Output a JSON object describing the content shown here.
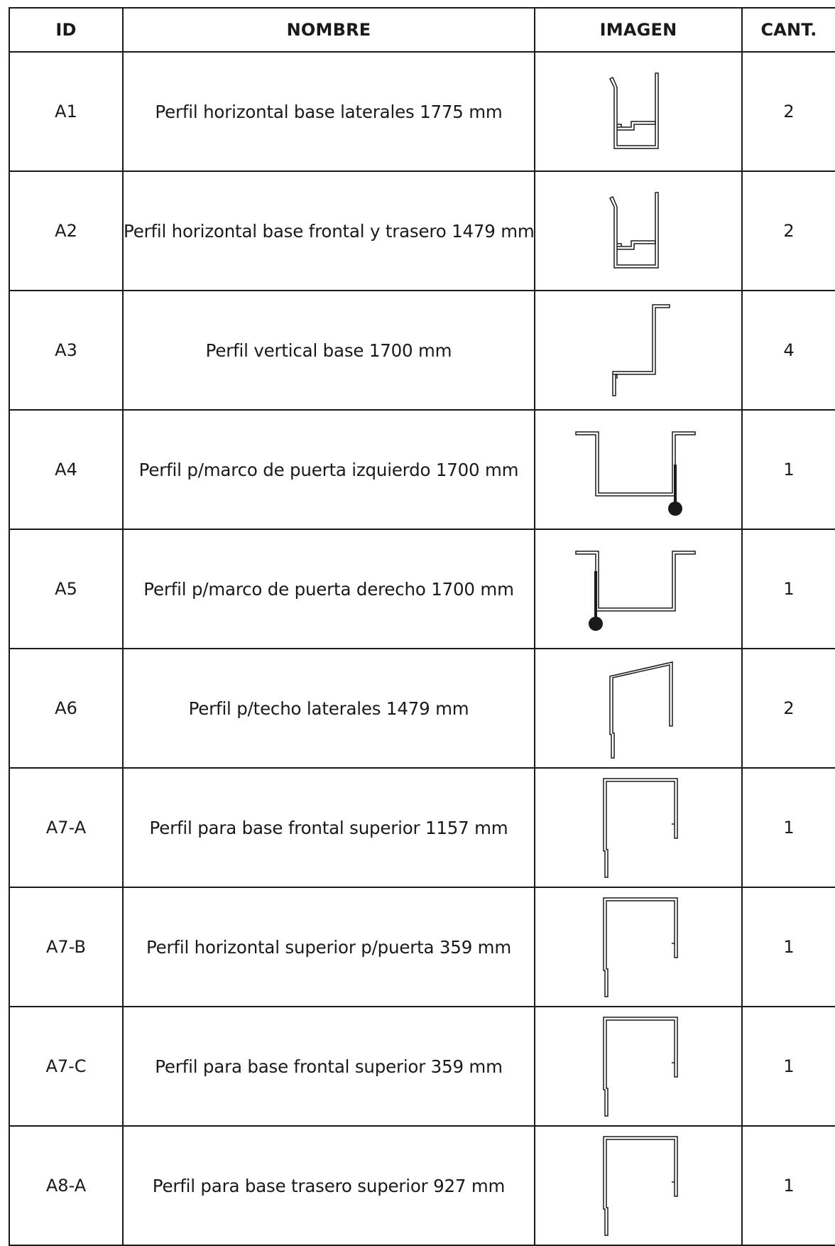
{
  "header": {
    "id": "ID",
    "name": "NOMBRE",
    "image": "IMAGEN",
    "qty": "CANT."
  },
  "rows": [
    {
      "id": "A1",
      "name": "Perfil horizontal base laterales 1775 mm",
      "qty": "2",
      "icon": "u-channel-profile-icon"
    },
    {
      "id": "A2",
      "name": "Perfil horizontal base frontal y trasero 1479 mm",
      "qty": "2",
      "icon": "u-channel-profile-icon"
    },
    {
      "id": "A3",
      "name": "Perfil vertical base  1700 mm",
      "qty": "4",
      "icon": "z-profile-icon"
    },
    {
      "id": "A4",
      "name": "Perfil p/marco de puerta izquierdo  1700 mm",
      "qty": "1",
      "icon": "door-frame-left-profile-icon"
    },
    {
      "id": "A5",
      "name": "Perfil p/marco de puerta derecho 1700 mm",
      "qty": "1",
      "icon": "door-frame-right-profile-icon"
    },
    {
      "id": "A6",
      "name": "Perfil p/techo laterales 1479 mm",
      "qty": "2",
      "icon": "sloped-roof-profile-icon"
    },
    {
      "id": "A7-A",
      "name": "Perfil para base  frontal superior 1157 mm",
      "qty": "1",
      "icon": "top-hat-profile-icon"
    },
    {
      "id": "A7-B",
      "name": "Perfil horizontal superior p/puerta  359 mm",
      "qty": "1",
      "icon": "top-hat-profile-icon"
    },
    {
      "id": "A7-C",
      "name": "Perfil para base frontal superior 359 mm",
      "qty": "1",
      "icon": "top-hat-profile-icon"
    },
    {
      "id": "A8-A",
      "name": "Perfil para base trasero superior  927 mm",
      "qty": "1",
      "icon": "top-hat-profile-icon"
    }
  ]
}
